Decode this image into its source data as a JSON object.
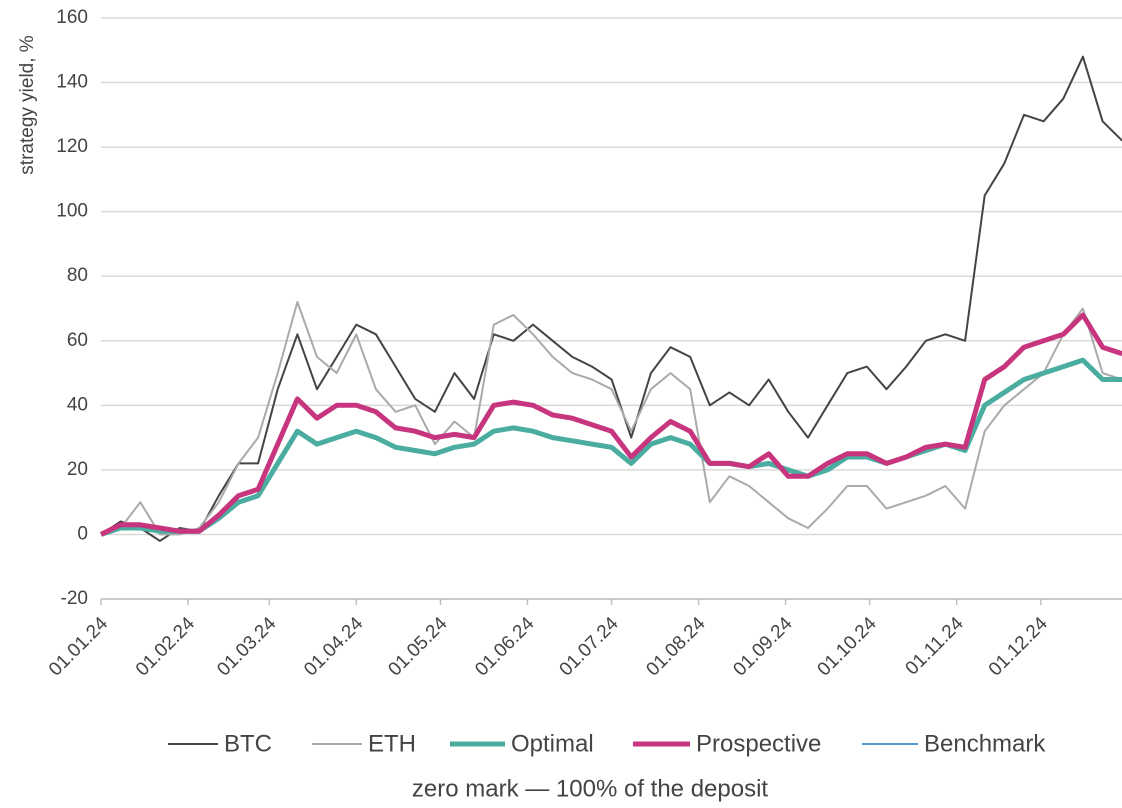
{
  "chart_data": {
    "type": "line",
    "y_label": "strategy yield, %",
    "subtitle": "zero mark — 100% of the deposit",
    "x": [
      "01.01.24",
      "08.01.24",
      "15.01.24",
      "22.01.24",
      "29.01.24",
      "05.02.24",
      "12.02.24",
      "19.02.24",
      "26.02.24",
      "04.03.24",
      "11.03.24",
      "18.03.24",
      "25.03.24",
      "01.04.24",
      "08.04.24",
      "15.04.24",
      "22.04.24",
      "29.04.24",
      "06.05.24",
      "13.05.24",
      "20.05.24",
      "27.05.24",
      "03.06.24",
      "10.06.24",
      "17.06.24",
      "24.06.24",
      "01.07.24",
      "08.07.24",
      "15.07.24",
      "22.07.24",
      "29.07.24",
      "05.08.24",
      "12.08.24",
      "19.08.24",
      "26.08.24",
      "02.09.24",
      "09.09.24",
      "16.09.24",
      "23.09.24",
      "30.09.24",
      "07.10.24",
      "14.10.24",
      "21.10.24",
      "28.10.24",
      "04.11.24",
      "11.11.24",
      "18.11.24",
      "25.11.24",
      "02.12.24",
      "09.12.24",
      "16.12.24",
      "23.12.24",
      "30.12.24"
    ],
    "series": [
      {
        "name": "BTC",
        "color": "#444444",
        "width": 2,
        "values": [
          0,
          4,
          2,
          -2,
          2,
          1,
          12,
          22,
          22,
          45,
          62,
          45,
          55,
          65,
          62,
          52,
          42,
          38,
          50,
          42,
          62,
          60,
          65,
          60,
          55,
          52,
          48,
          30,
          50,
          58,
          55,
          40,
          44,
          40,
          48,
          38,
          30,
          40,
          50,
          52,
          45,
          52,
          60,
          62,
          60,
          105,
          115,
          130,
          128,
          135,
          148,
          128,
          122
        ]
      },
      {
        "name": "ETH",
        "color": "#aaaaaa",
        "width": 2,
        "values": [
          0,
          2,
          10,
          0,
          0,
          2,
          10,
          22,
          30,
          50,
          72,
          55,
          50,
          62,
          45,
          38,
          40,
          28,
          35,
          30,
          65,
          68,
          62,
          55,
          50,
          48,
          45,
          32,
          45,
          50,
          45,
          10,
          18,
          15,
          10,
          5,
          2,
          8,
          15,
          15,
          8,
          10,
          12,
          15,
          8,
          32,
          40,
          45,
          50,
          62,
          70,
          50,
          48
        ]
      },
      {
        "name": "Optimal",
        "color": "#4aada0",
        "width": 5,
        "values": [
          0,
          2,
          2,
          1,
          1,
          1,
          5,
          10,
          12,
          22,
          32,
          28,
          30,
          32,
          30,
          27,
          26,
          25,
          27,
          28,
          32,
          33,
          32,
          30,
          29,
          28,
          27,
          22,
          28,
          30,
          28,
          22,
          22,
          21,
          22,
          20,
          18,
          20,
          24,
          24,
          22,
          24,
          26,
          28,
          26,
          40,
          44,
          48,
          50,
          52,
          54,
          48,
          48
        ]
      },
      {
        "name": "Prospective",
        "color": "#c8357f",
        "width": 5,
        "values": [
          0,
          3,
          3,
          2,
          1,
          1,
          6,
          12,
          14,
          28,
          42,
          36,
          40,
          40,
          38,
          33,
          32,
          30,
          31,
          30,
          40,
          41,
          40,
          37,
          36,
          34,
          32,
          24,
          30,
          35,
          32,
          22,
          22,
          21,
          25,
          18,
          18,
          22,
          25,
          25,
          22,
          24,
          27,
          28,
          27,
          48,
          52,
          58,
          60,
          62,
          68,
          58,
          56
        ]
      },
      {
        "name": "Benchmark",
        "color": "#5b9bd5",
        "width": 2,
        "values": [
          null,
          null,
          null,
          null,
          null,
          null,
          null,
          null,
          null,
          null,
          null,
          null,
          null,
          null,
          null,
          null,
          null,
          null,
          null,
          null,
          null,
          null,
          null,
          null,
          null,
          null,
          null,
          null,
          null,
          null,
          null,
          null,
          null,
          null,
          null,
          null,
          null,
          null,
          null,
          null,
          null,
          null,
          null,
          null,
          null,
          null,
          null,
          null,
          null,
          null,
          null,
          null,
          null
        ]
      }
    ],
    "xlim": [
      "01.01.24",
      "31.12.24"
    ],
    "xticks": [
      "01.01.24",
      "01.02.24",
      "01.03.24",
      "01.04.24",
      "01.05.24",
      "01.06.24",
      "01.07.24",
      "01.08.24",
      "01.09.24",
      "01.10.24",
      "01.11.24",
      "01.12.24"
    ],
    "ylim": [
      -20,
      160
    ],
    "yticks": [
      -20,
      0,
      20,
      40,
      60,
      80,
      100,
      120,
      140,
      160
    ],
    "grid": true
  }
}
